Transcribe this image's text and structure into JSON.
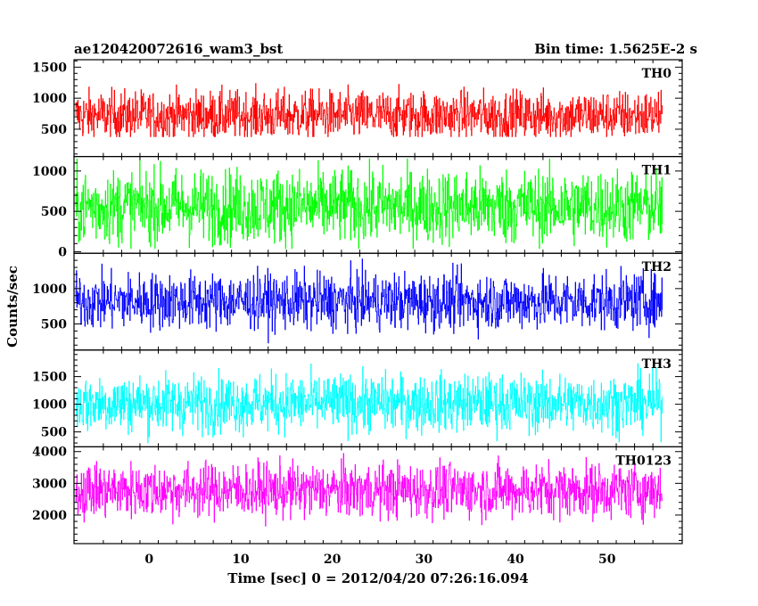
{
  "header": {
    "title": "ae120420072616_wam3_bst",
    "bin_time": "Bin time: 1.5625E-2 s"
  },
  "chart_data": {
    "type": "line",
    "title": "ae120420072616_wam3_bst",
    "xlabel": "Time [sec] 0 = 2012/04/20 07:26:16.094",
    "ylabel": "Counts/sec",
    "xlim": [
      -8.2,
      58.2
    ],
    "x_ticks": [
      0,
      10,
      20,
      30,
      40,
      50
    ],
    "x_range_data": [
      -8,
      56
    ],
    "bin_time_s": 0.015625,
    "grid": false,
    "panels": [
      {
        "name": "TH0",
        "color": "#ff0000",
        "ylim": [
          60,
          1620
        ],
        "y_ticks": [
          500,
          1000,
          1500
        ],
        "mean": 720,
        "sigma": 200,
        "spike_max": 1560,
        "floor": 380
      },
      {
        "name": "TH1",
        "color": "#00ff00",
        "ylim": [
          -20,
          1180
        ],
        "y_ticks": [
          0,
          500,
          1000
        ],
        "mean": 560,
        "sigma": 230,
        "spike_max": 1150,
        "floor": 40
      },
      {
        "name": "TH2",
        "color": "#0000ff",
        "ylim": [
          130,
          1500
        ],
        "y_ticks": [
          500,
          1000
        ],
        "mean": 820,
        "sigma": 200,
        "spike_max": 1490,
        "floor": 230
      },
      {
        "name": "TH3",
        "color": "#00ffff",
        "ylim": [
          230,
          1980
        ],
        "y_ticks": [
          500,
          1000,
          1500
        ],
        "mean": 1020,
        "sigma": 260,
        "spike_max": 1950,
        "floor": 300
      },
      {
        "name": "TH0123",
        "color": "#ff00ff",
        "ylim": [
          1100,
          4150
        ],
        "y_ticks": [
          2000,
          3000,
          4000
        ],
        "mean": 2780,
        "sigma": 430,
        "spike_max": 4150,
        "floor": 1100
      }
    ]
  }
}
